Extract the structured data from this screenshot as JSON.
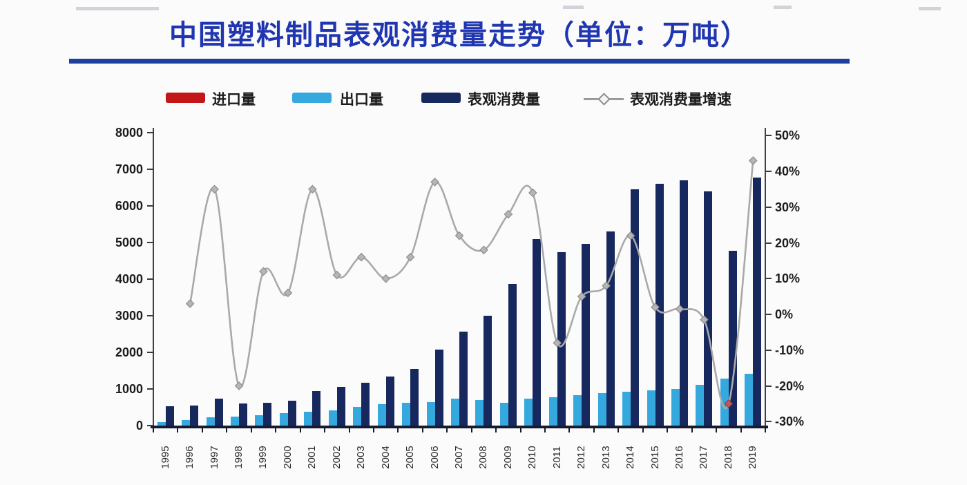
{
  "title": {
    "text": "中国塑料制品表观消费量走势（单位：万吨）"
  },
  "legend": {
    "position": "top",
    "items": [
      {
        "label": "进口量",
        "color": "#c41616",
        "type": "bar"
      },
      {
        "label": "出口量",
        "color": "#35a8de",
        "type": "bar"
      },
      {
        "label": "表观消费量",
        "color": "#17285e",
        "type": "bar"
      },
      {
        "label": "表观消费量增速",
        "color": "#a9a9a9",
        "type": "line"
      }
    ]
  },
  "chart_data": {
    "type": "bar",
    "subtype": "grouped-bars-with-growth-line",
    "title": "中国塑料制品表观消费量走势",
    "unit": "万吨",
    "grid": false,
    "legend_position": "top",
    "categories": [
      "1995",
      "1996",
      "1997",
      "1998",
      "1999",
      "2000",
      "2001",
      "2002",
      "2003",
      "2004",
      "2005",
      "2006",
      "2007",
      "2008",
      "2009",
      "2010",
      "2011",
      "2012",
      "2013",
      "2014",
      "2015",
      "2016",
      "2017",
      "2018",
      "2019"
    ],
    "series": [
      {
        "name": "进口量",
        "axis": "left",
        "type": "bar",
        "color": "#c41616",
        "values": [
          0,
          0,
          0,
          0,
          0,
          0,
          0,
          0,
          0,
          0,
          0,
          0,
          0,
          0,
          0,
          0,
          0,
          0,
          0,
          0,
          0,
          0,
          0,
          0,
          0
        ],
        "note": "legend entry present but bars are too small to be visible at chart scale"
      },
      {
        "name": "出口量",
        "axis": "left",
        "type": "bar",
        "color": "#35a8de",
        "values": [
          100,
          150,
          220,
          250,
          290,
          340,
          370,
          420,
          500,
          580,
          620,
          650,
          740,
          700,
          620,
          730,
          770,
          830,
          880,
          930,
          960,
          1000,
          1120,
          1280,
          1420
        ]
      },
      {
        "name": "表观消费量",
        "axis": "left",
        "type": "bar",
        "color": "#17285e",
        "values": [
          520,
          550,
          730,
          610,
          630,
          680,
          950,
          1050,
          1170,
          1340,
          1550,
          2080,
          2570,
          3000,
          3870,
          5100,
          4730,
          4960,
          5300,
          6450,
          6600,
          6700,
          6400,
          4780,
          6780
        ]
      },
      {
        "name": "表观消费量增速",
        "axis": "right",
        "type": "line",
        "color": "#a9a9a9",
        "marker": "diamond",
        "unit": "%",
        "smooth": true,
        "values": [
          null,
          3,
          35,
          -20,
          12,
          6,
          35,
          11,
          16,
          10,
          16,
          37,
          22,
          18,
          28,
          34,
          -8,
          5,
          8,
          22,
          2,
          1.5,
          -1.5,
          -25,
          43
        ]
      }
    ],
    "left_axis": {
      "min": 0,
      "max": 8000,
      "step": 1000,
      "tick_values": [
        8000,
        7000,
        6000,
        5000,
        4000,
        3000,
        2000,
        1000,
        0
      ],
      "tick_labels": [
        "8000",
        "7000",
        "6000",
        "5000",
        "4000",
        "3000",
        "2000",
        "1000",
        "0"
      ]
    },
    "right_axis": {
      "min": -30,
      "max": 50,
      "step": 10,
      "tick_values": [
        50,
        40,
        30,
        20,
        10,
        0,
        -10,
        -20,
        -30
      ],
      "tick_labels": [
        "50%",
        "40%",
        "30%",
        "20%",
        "10%",
        "0%",
        "-10%",
        "-20%",
        "-30%"
      ]
    },
    "highlight": {
      "year": "2018",
      "marker_color": "#c45858"
    }
  }
}
